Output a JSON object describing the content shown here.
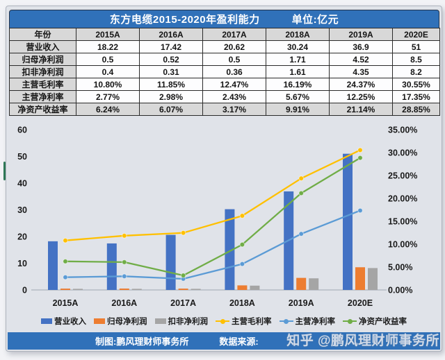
{
  "table": {
    "title": "东方电缆2015-2020年盈利能力",
    "unit": "单位:亿元",
    "header": [
      "年份",
      "2015A",
      "2016A",
      "2017A",
      "2018A",
      "2019A",
      "2020E"
    ],
    "rows": [
      {
        "label": "营业收入",
        "values": [
          "18.22",
          "17.42",
          "20.62",
          "30.24",
          "36.9",
          "51"
        ],
        "shaded": false
      },
      {
        "label": "归母净利润",
        "values": [
          "0.5",
          "0.52",
          "0.5",
          "1.71",
          "4.52",
          "8.5"
        ],
        "shaded": false
      },
      {
        "label": "扣非净利润",
        "values": [
          "0.4",
          "0.31",
          "0.36",
          "1.61",
          "4.35",
          "8.2"
        ],
        "shaded": false
      },
      {
        "label": "主营毛利率",
        "values": [
          "10.80%",
          "11.85%",
          "12.47%",
          "16.19%",
          "24.37%",
          "30.55%"
        ],
        "shaded": false
      },
      {
        "label": "主营净利率",
        "values": [
          "2.77%",
          "2.98%",
          "2.43%",
          "5.67%",
          "12.25%",
          "17.35%"
        ],
        "shaded": false
      },
      {
        "label": "净资产收益率",
        "values": [
          "6.24%",
          "6.07%",
          "3.17%",
          "9.91%",
          "21.14%",
          "28.85%"
        ],
        "shaded": true
      }
    ]
  },
  "chart_data": {
    "type": "bar+line combo, dual axis",
    "categories": [
      "2015A",
      "2016A",
      "2017A",
      "2018A",
      "2019A",
      "2020E"
    ],
    "bar_series": [
      {
        "name": "营业收入",
        "color": "#4472C4",
        "axis": "left",
        "values": [
          18.22,
          17.42,
          20.62,
          30.24,
          36.9,
          51
        ]
      },
      {
        "name": "归母净利润",
        "color": "#ED7D31",
        "axis": "left",
        "values": [
          0.5,
          0.52,
          0.5,
          1.71,
          4.52,
          8.5
        ]
      },
      {
        "name": "扣非净利润",
        "color": "#A5A5A5",
        "axis": "left",
        "values": [
          0.4,
          0.31,
          0.36,
          1.61,
          4.35,
          8.2
        ]
      }
    ],
    "line_series": [
      {
        "name": "主营毛利率",
        "color": "#FFC000",
        "axis": "right",
        "values": [
          10.8,
          11.85,
          12.47,
          16.19,
          24.37,
          30.55
        ]
      },
      {
        "name": "主营净利率",
        "color": "#5B9BD5",
        "axis": "right",
        "values": [
          2.77,
          2.98,
          2.43,
          5.67,
          12.25,
          17.35
        ]
      },
      {
        "name": "净资产收益率",
        "color": "#70AD47",
        "axis": "right",
        "values": [
          6.24,
          6.07,
          3.17,
          9.91,
          21.14,
          28.85
        ]
      }
    ],
    "left_axis": {
      "min": 0,
      "max": 60,
      "step": 10,
      "labels": [
        "60",
        "50",
        "40",
        "30",
        "20",
        "10",
        "0"
      ]
    },
    "right_axis": {
      "min": 0,
      "max": 35,
      "step": 5,
      "labels": [
        "35.00%",
        "30.00%",
        "25.00%",
        "20.00%",
        "15.00%",
        "10.00%",
        "5.00%",
        "0.00%"
      ]
    },
    "grid": false,
    "legend_position": "bottom"
  },
  "footer": {
    "made_by": "制图:鹏风理财师事务所",
    "source_label": "数据来源:",
    "watermark": "知乎 @鹏风理财师事务所"
  },
  "colors": {
    "accent_blue": "#3071b9",
    "panel_bg": "#e0e3e9",
    "table_shade": "#d8d8d8",
    "bar_blue": "#4472C4",
    "bar_orange": "#ED7D31",
    "bar_gray": "#A5A5A5",
    "line_yellow": "#FFC000",
    "line_blue": "#5B9BD5",
    "line_green": "#70AD47"
  }
}
